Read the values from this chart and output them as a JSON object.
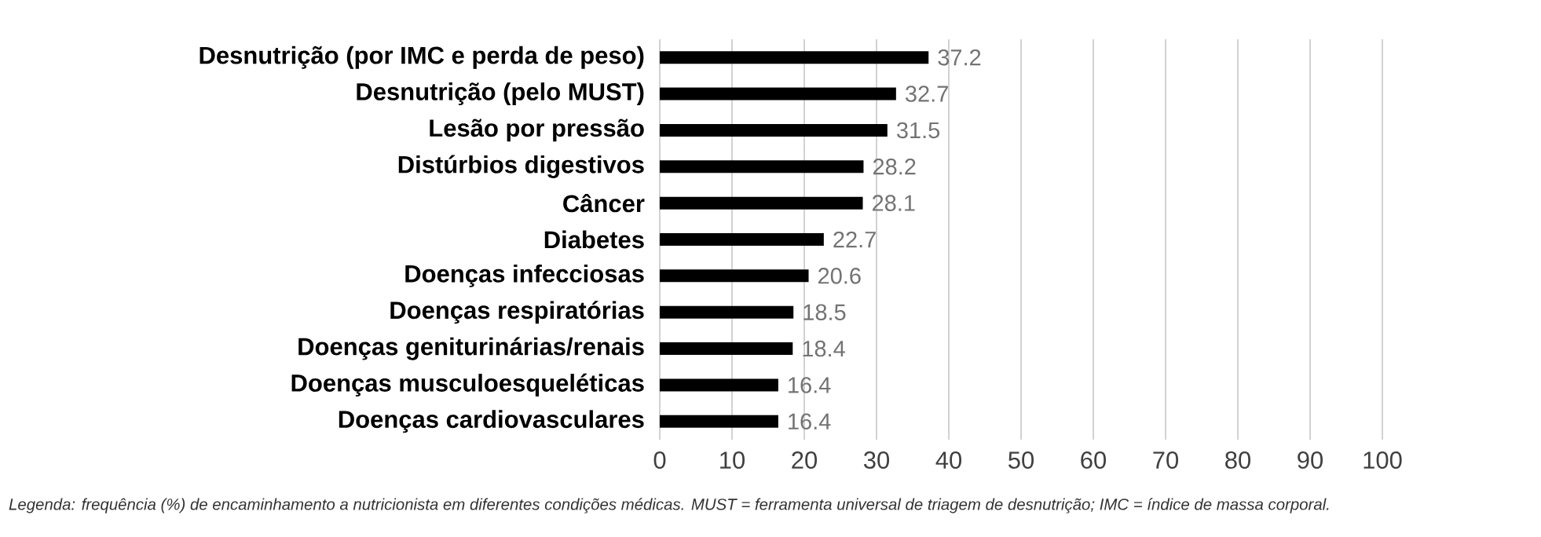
{
  "chart_data": {
    "type": "bar",
    "orientation": "horizontal",
    "categories": [
      "Desnutrição (por IMC e perda de peso)",
      "Desnutrição (pelo MUST)",
      "Lesão por pressão",
      "Distúrbios digestivos",
      "Câncer",
      "Diabetes",
      "Doenças infecciosas",
      "Doenças respiratórias",
      "Doenças geniturinárias/renais",
      "Doenças musculoesqueléticas",
      "Doenças cardiovasculares"
    ],
    "values": [
      37.2,
      32.7,
      31.5,
      28.2,
      28.1,
      22.7,
      20.6,
      18.5,
      18.4,
      16.4,
      16.4
    ],
    "color": "#000000",
    "data_labels": true,
    "grid": "x",
    "xlim": [
      0,
      100
    ],
    "xticks": [
      0,
      10,
      20,
      30,
      40,
      50,
      60,
      70,
      80,
      90,
      100
    ],
    "annotations": [
      "Legenda: frequência (%) de encaminhamento a nutricionista em diferentes condições médicas. MUST = ferramenta universal de triagem de desnutrição; IMC = índice de massa corporal."
    ]
  }
}
